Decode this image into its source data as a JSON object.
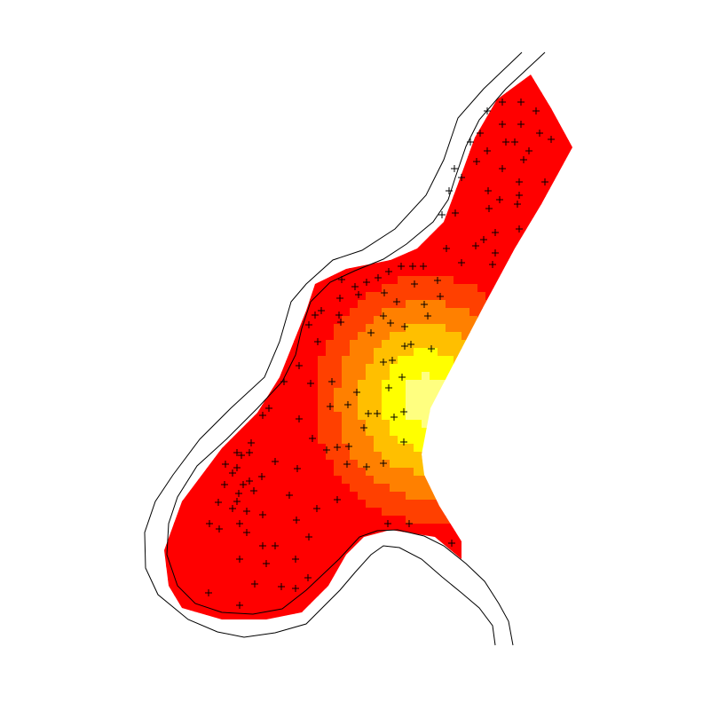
{
  "chart_data": {
    "type": "heatmap",
    "title": "",
    "xlabel": "",
    "ylabel": "",
    "axes_visible": false,
    "grid": false,
    "legend": "none",
    "color_ramp": [
      "#ff0000",
      "#ff4000",
      "#ff8000",
      "#ffbf00",
      "#ffff00",
      "#ffff80"
    ],
    "mask_outline": [
      [
        598,
        84
      ],
      [
        621,
        122
      ],
      [
        645,
        166
      ],
      [
        610,
        230
      ],
      [
        580,
        280
      ],
      [
        545,
        345
      ],
      [
        485,
        460
      ],
      [
        475,
        512
      ],
      [
        478,
        535
      ],
      [
        495,
        570
      ],
      [
        520,
        610
      ],
      [
        520,
        630
      ],
      [
        490,
        605
      ],
      [
        440,
        597
      ],
      [
        410,
        605
      ],
      [
        390,
        625
      ],
      [
        370,
        660
      ],
      [
        340,
        690
      ],
      [
        300,
        698
      ],
      [
        250,
        698
      ],
      [
        205,
        685
      ],
      [
        190,
        660
      ],
      [
        185,
        620
      ],
      [
        205,
        565
      ],
      [
        250,
        505
      ],
      [
        290,
        465
      ],
      [
        315,
        425
      ],
      [
        345,
        350
      ],
      [
        355,
        320
      ],
      [
        390,
        303
      ],
      [
        440,
        293
      ],
      [
        470,
        280
      ],
      [
        500,
        250
      ],
      [
        515,
        210
      ],
      [
        535,
        155
      ],
      [
        560,
        112
      ]
    ],
    "field_peak": [
      480,
      450
    ],
    "field_falloff": 150,
    "river_banks": [
      [
        [
          588,
          59
        ],
        [
          545,
          100
        ],
        [
          516,
          133
        ],
        [
          500,
          180
        ],
        [
          480,
          220
        ],
        [
          445,
          258
        ],
        [
          408,
          282
        ],
        [
          375,
          293
        ],
        [
          345,
          320
        ],
        [
          328,
          340
        ],
        [
          315,
          385
        ],
        [
          298,
          425
        ],
        [
          260,
          460
        ],
        [
          225,
          495
        ],
        [
          195,
          535
        ],
        [
          175,
          565
        ],
        [
          163,
          600
        ],
        [
          164,
          640
        ],
        [
          178,
          670
        ],
        [
          212,
          698
        ],
        [
          245,
          712
        ],
        [
          275,
          718
        ],
        [
          310,
          713
        ],
        [
          345,
          703
        ],
        [
          362,
          686
        ],
        [
          383,
          665
        ],
        [
          400,
          645
        ],
        [
          418,
          625
        ],
        [
          432,
          615
        ],
        [
          450,
          617
        ],
        [
          475,
          630
        ],
        [
          498,
          650
        ],
        [
          520,
          668
        ],
        [
          540,
          685
        ],
        [
          555,
          705
        ],
        [
          558,
          727
        ]
      ],
      [
        [
          614,
          59
        ],
        [
          570,
          100
        ],
        [
          540,
          135
        ],
        [
          525,
          165
        ],
        [
          513,
          200
        ],
        [
          505,
          225
        ],
        [
          488,
          250
        ],
        [
          458,
          275
        ],
        [
          432,
          292
        ],
        [
          400,
          305
        ],
        [
          372,
          318
        ],
        [
          350,
          340
        ],
        [
          340,
          370
        ],
        [
          333,
          400
        ],
        [
          318,
          430
        ],
        [
          290,
          460
        ],
        [
          255,
          495
        ],
        [
          222,
          525
        ],
        [
          200,
          560
        ],
        [
          190,
          590
        ],
        [
          188,
          625
        ],
        [
          200,
          660
        ],
        [
          220,
          680
        ],
        [
          250,
          690
        ],
        [
          285,
          692
        ],
        [
          318,
          686
        ],
        [
          345,
          665
        ],
        [
          363,
          648
        ],
        [
          382,
          630
        ],
        [
          405,
          605
        ],
        [
          425,
          598
        ],
        [
          448,
          597
        ],
        [
          478,
          604
        ],
        [
          500,
          615
        ],
        [
          525,
          635
        ],
        [
          546,
          655
        ],
        [
          562,
          680
        ],
        [
          573,
          700
        ],
        [
          578,
          727
        ]
      ]
    ],
    "sample_points": [
      [
        587,
        115
      ],
      [
        566,
        115
      ],
      [
        604,
        125
      ],
      [
        549,
        125
      ],
      [
        566,
        140
      ],
      [
        587,
        140
      ],
      [
        541,
        150
      ],
      [
        570,
        160
      ],
      [
        580,
        160
      ],
      [
        530,
        160
      ],
      [
        608,
        150
      ],
      [
        621,
        157
      ],
      [
        596,
        170
      ],
      [
        549,
        170
      ],
      [
        537,
        182
      ],
      [
        590,
        180
      ],
      [
        566,
        190
      ],
      [
        512,
        190
      ],
      [
        520,
        200
      ],
      [
        585,
        205
      ],
      [
        614,
        205
      ],
      [
        506,
        215
      ],
      [
        550,
        215
      ],
      [
        563,
        225
      ],
      [
        585,
        220
      ],
      [
        583,
        230
      ],
      [
        551,
        235
      ],
      [
        513,
        240
      ],
      [
        498,
        242
      ],
      [
        558,
        262
      ],
      [
        585,
        258
      ],
      [
        545,
        270
      ],
      [
        536,
        277
      ],
      [
        503,
        280
      ],
      [
        558,
        285
      ],
      [
        555,
        298
      ],
      [
        520,
        296
      ],
      [
        477,
        300
      ],
      [
        465,
        300
      ],
      [
        452,
        300
      ],
      [
        438,
        306
      ],
      [
        467,
        320
      ],
      [
        426,
        313
      ],
      [
        413,
        318
      ],
      [
        400,
        323
      ],
      [
        385,
        315
      ],
      [
        493,
        316
      ],
      [
        478,
        343
      ],
      [
        496,
        334
      ],
      [
        433,
        330
      ],
      [
        447,
        340
      ],
      [
        404,
        332
      ],
      [
        383,
        336
      ],
      [
        355,
        355
      ],
      [
        362,
        350
      ],
      [
        382,
        355
      ],
      [
        348,
        366
      ],
      [
        384,
        363
      ],
      [
        432,
        356
      ],
      [
        440,
        364
      ],
      [
        418,
        375
      ],
      [
        456,
        368
      ],
      [
        482,
        356
      ],
      [
        463,
        388
      ],
      [
        456,
        390
      ],
      [
        486,
        393
      ],
      [
        442,
        406
      ],
      [
        358,
        385
      ],
      [
        320,
        430
      ],
      [
        337,
        412
      ],
      [
        350,
        432
      ],
      [
        374,
        430
      ],
      [
        402,
        442
      ],
      [
        438,
        437
      ],
      [
        453,
        425
      ],
      [
        415,
        466
      ],
      [
        455,
        464
      ],
      [
        372,
        458
      ],
      [
        392,
        456
      ],
      [
        425,
        466
      ],
      [
        444,
        470
      ],
      [
        337,
        472
      ],
      [
        410,
        482
      ],
      [
        455,
        498
      ],
      [
        432,
        408
      ],
      [
        393,
        503
      ],
      [
        380,
        504
      ],
      [
        368,
        507
      ],
      [
        352,
        494
      ],
      [
        303,
        460
      ],
      [
        296,
        468
      ],
      [
        283,
        499
      ],
      [
        281,
        510
      ],
      [
        267,
        510
      ],
      [
        267,
        527
      ],
      [
        272,
        513
      ],
      [
        254,
        523
      ],
      [
        281,
        542
      ],
      [
        286,
        553
      ],
      [
        295,
        537
      ],
      [
        310,
        520
      ],
      [
        335,
        528
      ],
      [
        391,
        523
      ],
      [
        413,
        526
      ],
      [
        432,
        522
      ],
      [
        262,
        533
      ],
      [
        274,
        546
      ],
      [
        269,
        556
      ],
      [
        253,
        546
      ],
      [
        267,
        565
      ],
      [
        278,
        576
      ],
      [
        262,
        573
      ],
      [
        246,
        566
      ],
      [
        270,
        590
      ],
      [
        326,
        558
      ],
      [
        357,
        573
      ],
      [
        380,
        563
      ],
      [
        334,
        586
      ],
      [
        437,
        590
      ],
      [
        461,
        590
      ],
      [
        296,
        580
      ],
      [
        236,
        590
      ],
      [
        247,
        596
      ],
      [
        278,
        600
      ],
      [
        296,
        615
      ],
      [
        310,
        615
      ],
      [
        348,
        605
      ],
      [
        270,
        630
      ],
      [
        300,
        635
      ],
      [
        333,
        630
      ],
      [
        347,
        651
      ],
      [
        287,
        658
      ],
      [
        317,
        661
      ],
      [
        333,
        663
      ],
      [
        235,
        668
      ],
      [
        270,
        682
      ],
      [
        509,
        612
      ]
    ],
    "sample_marker": "+"
  }
}
